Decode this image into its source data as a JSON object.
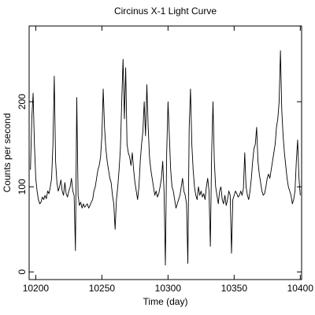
{
  "chart_data": {
    "type": "line",
    "title": "Circinus X-1 Light Curve",
    "x_label": "Time (day)",
    "y_label": "Counts per second",
    "x": [
      10196,
      10197,
      10198,
      10199,
      10200,
      10201,
      10202,
      10203,
      10204,
      10205,
      10206,
      10207,
      10208,
      10209,
      10210,
      10211,
      10212,
      10213,
      10214,
      10215,
      10216,
      10217,
      10218,
      10219,
      10220,
      10221,
      10222,
      10223,
      10224,
      10225,
      10226,
      10227,
      10228,
      10229,
      10230,
      10231,
      10232,
      10233,
      10234,
      10235,
      10236,
      10237,
      10238,
      10239,
      10240,
      10241,
      10242,
      10243,
      10244,
      10245,
      10246,
      10247,
      10248,
      10249,
      10250,
      10251,
      10252,
      10253,
      10254,
      10255,
      10256,
      10257,
      10258,
      10259,
      10260,
      10261,
      10262,
      10263,
      10264,
      10265,
      10266,
      10267,
      10268,
      10269,
      10270,
      10271,
      10272,
      10273,
      10274,
      10275,
      10276,
      10277,
      10278,
      10279,
      10280,
      10281,
      10282,
      10283,
      10284,
      10285,
      10286,
      10287,
      10288,
      10289,
      10290,
      10291,
      10292,
      10293,
      10294,
      10295,
      10296,
      10297,
      10298,
      10299,
      10300,
      10301,
      10302,
      10303,
      10304,
      10305,
      10306,
      10307,
      10308,
      10309,
      10310,
      10311,
      10312,
      10313,
      10314,
      10315,
      10316,
      10317,
      10318,
      10319,
      10320,
      10321,
      10322,
      10323,
      10324,
      10325,
      10326,
      10327,
      10328,
      10329,
      10330,
      10331,
      10332,
      10333,
      10334,
      10335,
      10336,
      10337,
      10338,
      10339,
      10340,
      10341,
      10342,
      10343,
      10344,
      10345,
      10346,
      10347,
      10348,
      10349,
      10350,
      10351,
      10352,
      10353,
      10354,
      10355,
      10356,
      10357,
      10358,
      10359,
      10360,
      10361,
      10362,
      10363,
      10364,
      10365,
      10366,
      10367,
      10368,
      10369,
      10370,
      10371,
      10372,
      10373,
      10374,
      10375,
      10376,
      10377,
      10378,
      10379,
      10380,
      10381,
      10382,
      10383,
      10384,
      10385,
      10386,
      10387,
      10388,
      10389,
      10390,
      10391,
      10392,
      10393,
      10394,
      10395,
      10396,
      10397,
      10398,
      10399,
      10400
    ],
    "series": [
      {
        "color": "#000000",
        "values": [
          120,
          180,
          210,
          150,
          110,
          95,
          85,
          80,
          82,
          88,
          85,
          90,
          86,
          95,
          92,
          100,
          110,
          150,
          230,
          130,
          105,
          95,
          100,
          108,
          95,
          90,
          105,
          92,
          88,
          95,
          100,
          110,
          95,
          90,
          25,
          205,
          90,
          78,
          82,
          75,
          80,
          76,
          78,
          80,
          75,
          78,
          82,
          85,
          95,
          100,
          110,
          120,
          125,
          135,
          160,
          215,
          170,
          145,
          130,
          120,
          110,
          105,
          90,
          80,
          50,
          85,
          100,
          120,
          145,
          200,
          250,
          180,
          240,
          150,
          140,
          135,
          125,
          140,
          120,
          105,
          95,
          85,
          100,
          130,
          150,
          165,
          200,
          160,
          220,
          170,
          135,
          120,
          110,
          100,
          90,
          95,
          88,
          92,
          100,
          110,
          130,
          95,
          8,
          140,
          200,
          160,
          120,
          100,
          95,
          85,
          75,
          80,
          85,
          90,
          100,
          110,
          95,
          90,
          80,
          10,
          170,
          215,
          150,
          120,
          100,
          90,
          85,
          100,
          90,
          95,
          88,
          92,
          85,
          100,
          110,
          95,
          30,
          140,
          200,
          130,
          100,
          90,
          80,
          95,
          100,
          85,
          80,
          90,
          78,
          85,
          95,
          90,
          22,
          85,
          90,
          95,
          92,
          88,
          90,
          95,
          90,
          98,
          140,
          100,
          90,
          85,
          95,
          110,
          130,
          145,
          150,
          170,
          130,
          115,
          105,
          95,
          90,
          92,
          100,
          110,
          115,
          110,
          120,
          130,
          140,
          150,
          170,
          180,
          200,
          260,
          190,
          160,
          140,
          125,
          110,
          100,
          95,
          90,
          80,
          85,
          95,
          130,
          155,
          110,
          90
        ]
      }
    ],
    "xlim": [
      10195,
      10401
    ],
    "ylim": [
      -9,
      289
    ],
    "xticks": [
      10200,
      10250,
      10300,
      10350,
      10400
    ],
    "yticks": [
      0,
      100,
      200
    ]
  }
}
